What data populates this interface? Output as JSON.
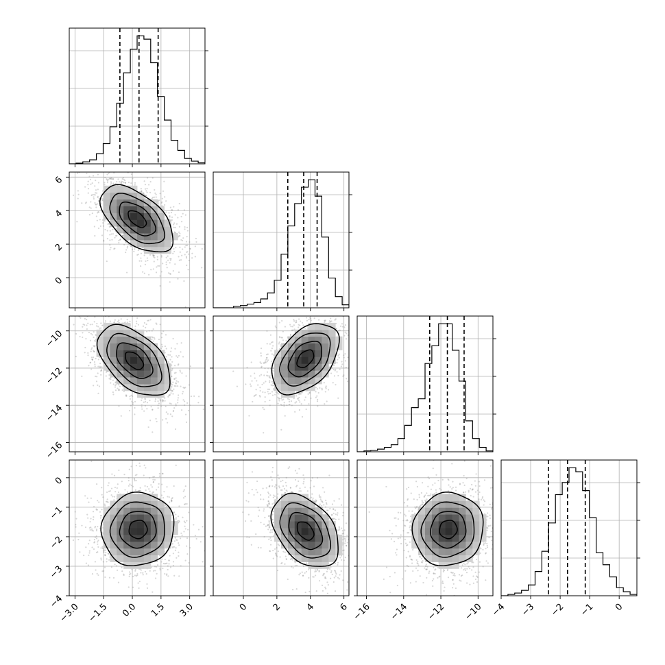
{
  "chart_data": {
    "type": "corner",
    "title": "",
    "n_params": 4,
    "params": [
      {
        "range": [
          -3.3,
          3.8
        ],
        "ticks": [
          -3.0,
          -1.5,
          0.0,
          1.5,
          3.0
        ],
        "tick_labels": [
          "−3.0",
          "−1.5",
          "0.0",
          "1.5",
          "3.0"
        ],
        "quantiles": [
          -0.65,
          0.35,
          1.35
        ],
        "hist_start": -3.3,
        "hist_width": 0.355,
        "hist_counts": [
          0.0,
          0.1,
          0.3,
          0.6,
          1.5,
          3.0,
          5.5,
          9.0,
          13.5,
          17.0,
          19.0,
          18.5,
          15.0,
          10.0,
          6.5,
          3.5,
          2.0,
          0.8,
          0.4,
          0.15
        ]
      },
      {
        "range": [
          -1.8,
          6.3
        ],
        "ticks": [
          0,
          2,
          4,
          6
        ],
        "tick_labels": [
          "0",
          "2",
          "4",
          "6"
        ],
        "quantiles": [
          2.65,
          3.6,
          4.4
        ],
        "hist_start": -1.8,
        "hist_width": 0.405,
        "hist_counts": [
          0.0,
          0.0,
          0.0,
          0.2,
          0.3,
          0.5,
          0.7,
          1.2,
          2.0,
          3.7,
          7.2,
          11.0,
          14.0,
          16.2,
          17.2,
          15.0,
          9.5,
          4.0,
          1.5,
          0.4
        ]
      },
      {
        "range": [
          -16.5,
          -9.2
        ],
        "ticks": [
          -16,
          -14,
          -12,
          -10
        ],
        "tick_labels": [
          "−16",
          "−14",
          "−12",
          "−10"
        ],
        "quantiles": [
          -12.6,
          -11.65,
          -10.75
        ],
        "hist_start": -16.5,
        "hist_width": 0.365,
        "hist_counts": [
          0.0,
          0.1,
          0.15,
          0.3,
          0.5,
          0.8,
          1.5,
          3.0,
          5.0,
          6.0,
          10.0,
          12.0,
          14.5,
          14.5,
          11.5,
          8.0,
          3.5,
          1.5,
          0.5,
          0.1
        ]
      },
      {
        "range": [
          -4.0,
          0.6
        ],
        "ticks": [
          -4,
          -3,
          -2,
          -1,
          0
        ],
        "tick_labels": [
          "−4",
          "−3",
          "−2",
          "−1",
          "0"
        ],
        "quantiles": [
          -2.4,
          -1.75,
          -1.15
        ],
        "hist_start": -4.0,
        "hist_width": 0.23,
        "hist_counts": [
          0.0,
          0.1,
          0.2,
          0.4,
          0.8,
          1.8,
          3.3,
          5.4,
          7.5,
          8.4,
          9.5,
          9.2,
          7.8,
          5.8,
          3.2,
          2.3,
          1.4,
          0.6,
          0.3,
          0.1
        ]
      }
    ],
    "pairs": [
      {
        "x": 0,
        "y": 1,
        "center": [
          0.25,
          3.5
        ],
        "sd": [
          0.95,
          1.0
        ],
        "rho": -0.55
      },
      {
        "x": 0,
        "y": 2,
        "center": [
          0.1,
          -11.6
        ],
        "sd": [
          0.95,
          0.95
        ],
        "rho": -0.5
      },
      {
        "x": 1,
        "y": 2,
        "center": [
          3.7,
          -11.5
        ],
        "sd": [
          1.0,
          0.95
        ],
        "rho": 0.45
      },
      {
        "x": 0,
        "y": 3,
        "center": [
          0.3,
          -1.75
        ],
        "sd": [
          0.95,
          0.62
        ],
        "rho": 0.05
      },
      {
        "x": 1,
        "y": 3,
        "center": [
          3.7,
          -1.8
        ],
        "sd": [
          1.0,
          0.62
        ],
        "rho": -0.4
      },
      {
        "x": 2,
        "y": 3,
        "center": [
          -11.6,
          -1.75
        ],
        "sd": [
          0.95,
          0.62
        ],
        "rho": 0.05
      }
    ],
    "contour_levels": [
      0.5,
      1.0,
      1.5,
      2.0
    ],
    "grid": true,
    "quantile_style": "dashed"
  }
}
